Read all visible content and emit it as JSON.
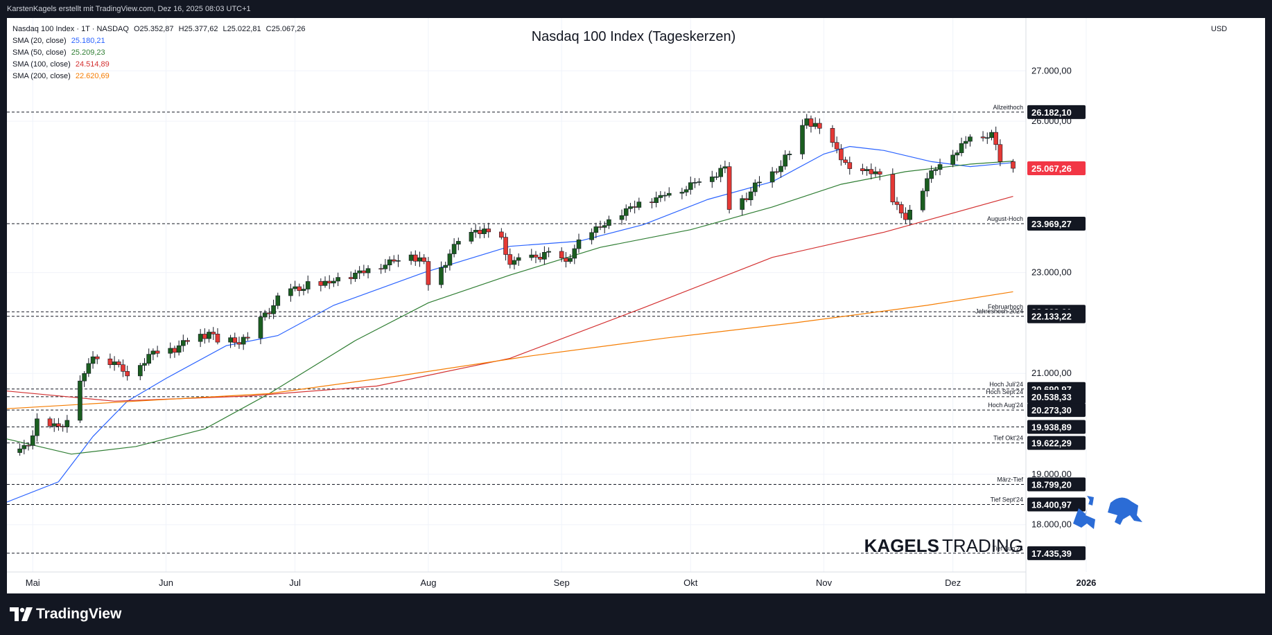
{
  "header": {
    "attribution": "KarstenKagels erstellt mit TradingView.com, Dez 16, 2025 08:03 UTC+1"
  },
  "legend": {
    "symbol_line": "Nasdaq 100 Index · 1T · NASDAQ",
    "ohlc": {
      "o": "O25.352,87",
      "h": "H25.377,62",
      "l": "L25.022,81",
      "c": "C25.067,26"
    },
    "sma": [
      {
        "label": "SMA (20, close)",
        "value": "25.180,21",
        "color": "#2962ff"
      },
      {
        "label": "SMA (50, close)",
        "value": "25.209,23",
        "color": "#2e7d32"
      },
      {
        "label": "SMA (100, close)",
        "value": "24.514,89",
        "color": "#d32f2f"
      },
      {
        "label": "SMA (200, close)",
        "value": "22.620,69",
        "color": "#f57c00"
      }
    ]
  },
  "currency": "USD",
  "footer": {
    "brand": "TradingView"
  },
  "watermark": {
    "text_bold": "KAGELS",
    "text_light": "TRADING",
    "color": "#2b6cd6"
  },
  "chart_data": {
    "type": "candlestick",
    "title": "Nasdaq 100 Index (Tageskerzen)",
    "y_range": [
      17200,
      27800
    ],
    "y_ticks": [
      {
        "v": 18000,
        "label": "18.000,00"
      },
      {
        "v": 19000,
        "label": "19.000,00"
      },
      {
        "v": 21000,
        "label": "21.000,00"
      },
      {
        "v": 23000,
        "label": "23.000,00"
      },
      {
        "v": 26000,
        "label": "26.000,00"
      },
      {
        "v": 27000,
        "label": "27.000,00"
      }
    ],
    "x_domain": [
      "2025-04-25",
      "2026-01-16"
    ],
    "x_labels": [
      {
        "date": "2025-05-01",
        "label": "Mai"
      },
      {
        "date": "2025-06-01",
        "label": "Jun"
      },
      {
        "date": "2025-07-01",
        "label": "Jul"
      },
      {
        "date": "2025-08-01",
        "label": "Aug"
      },
      {
        "date": "2025-09-01",
        "label": "Sep"
      },
      {
        "date": "2025-10-01",
        "label": "Okt"
      },
      {
        "date": "2025-11-01",
        "label": "Nov"
      },
      {
        "date": "2025-12-01",
        "label": "Dez"
      },
      {
        "date": "2026-01-01",
        "label": "2026"
      }
    ],
    "levels": [
      {
        "value": 26182.1,
        "label": "26.182,10",
        "name": "Allzeithoch",
        "dark": true
      },
      {
        "value": 25067.26,
        "label": "25.067,26",
        "name": "",
        "price": true
      },
      {
        "value": 23969.27,
        "label": "23.969,27",
        "name": "August-Hoch",
        "dark": true
      },
      {
        "value": 22222.61,
        "label": "22.222,61",
        "name": "Februarhoch",
        "dark": true
      },
      {
        "value": 22133.22,
        "label": "22.133,22",
        "name": "Jahreshoch 2024",
        "dark": true
      },
      {
        "value": 20690.97,
        "label": "20.690,97",
        "name": "Hoch Juli'24",
        "dark": true
      },
      {
        "value": 20538.33,
        "label": "20.538,33",
        "name": "Hoch Sept'24",
        "dark": true
      },
      {
        "value": 20273.3,
        "label": "20.273,30",
        "name": "Hoch Aug'24",
        "dark": true
      },
      {
        "value": 19938.89,
        "label": "19.938,89",
        "name": "",
        "dark": true
      },
      {
        "value": 19622.29,
        "label": "19.622,29",
        "name": "Tief Okt'24",
        "dark": true
      },
      {
        "value": 18799.2,
        "label": "18.799,20",
        "name": "März-Tief",
        "dark": true
      },
      {
        "value": 18400.97,
        "label": "18.400,97",
        "name": "Tief Sept'24",
        "dark": true
      },
      {
        "value": 17435.39,
        "label": "17.435,39",
        "name": "Tief Aug'24",
        "dark": true
      }
    ],
    "key_closes": [
      {
        "date": "2025-04-25",
        "close": 19430
      },
      {
        "date": "2025-04-30",
        "close": 19570
      },
      {
        "date": "2025-05-02",
        "close": 20100
      },
      {
        "date": "2025-05-07",
        "close": 19950
      },
      {
        "date": "2025-05-09",
        "close": 20070
      },
      {
        "date": "2025-05-12",
        "close": 20850
      },
      {
        "date": "2025-05-15",
        "close": 21330
      },
      {
        "date": "2025-05-20",
        "close": 21230
      },
      {
        "date": "2025-05-23",
        "close": 20950
      },
      {
        "date": "2025-05-28",
        "close": 21380
      },
      {
        "date": "2025-06-04",
        "close": 21550
      },
      {
        "date": "2025-06-11",
        "close": 21820
      },
      {
        "date": "2025-06-13",
        "close": 21620
      },
      {
        "date": "2025-06-20",
        "close": 21700
      },
      {
        "date": "2025-06-24",
        "close": 22200
      },
      {
        "date": "2025-06-30",
        "close": 22680
      },
      {
        "date": "2025-07-10",
        "close": 22830
      },
      {
        "date": "2025-07-18",
        "close": 23080
      },
      {
        "date": "2025-07-28",
        "close": 23350
      },
      {
        "date": "2025-07-31",
        "close": 23220
      },
      {
        "date": "2025-08-01",
        "close": 22760
      },
      {
        "date": "2025-08-08",
        "close": 23620
      },
      {
        "date": "2025-08-12",
        "close": 23840
      },
      {
        "date": "2025-08-18",
        "close": 23700
      },
      {
        "date": "2025-08-20",
        "close": 23160
      },
      {
        "date": "2025-08-29",
        "close": 23420
      },
      {
        "date": "2025-09-02",
        "close": 23220
      },
      {
        "date": "2025-09-05",
        "close": 23650
      },
      {
        "date": "2025-09-12",
        "close": 24050
      },
      {
        "date": "2025-09-19",
        "close": 24400
      },
      {
        "date": "2025-09-24",
        "close": 24530
      },
      {
        "date": "2025-10-03",
        "close": 24800
      },
      {
        "date": "2025-10-09",
        "close": 25100
      },
      {
        "date": "2025-10-10",
        "close": 24250
      },
      {
        "date": "2025-10-20",
        "close": 25000
      },
      {
        "date": "2025-10-24",
        "close": 25350
      },
      {
        "date": "2025-10-28",
        "close": 26050
      },
      {
        "date": "2025-10-31",
        "close": 25860
      },
      {
        "date": "2025-11-04",
        "close": 25450
      },
      {
        "date": "2025-11-07",
        "close": 25060
      },
      {
        "date": "2025-11-13",
        "close": 25000
      },
      {
        "date": "2025-11-20",
        "close": 24050
      },
      {
        "date": "2025-11-21",
        "close": 24240
      },
      {
        "date": "2025-11-26",
        "close": 25020
      },
      {
        "date": "2025-12-01",
        "close": 25330
      },
      {
        "date": "2025-12-05",
        "close": 25690
      },
      {
        "date": "2025-12-10",
        "close": 25780
      },
      {
        "date": "2025-12-12",
        "close": 25200
      },
      {
        "date": "2025-12-15",
        "close": 25067
      }
    ],
    "sma_series": [
      {
        "name": "SMA (20, close)",
        "color": "#2962ff",
        "points": [
          [
            "2025-04-25",
            18450
          ],
          [
            "2025-05-07",
            18850
          ],
          [
            "2025-05-15",
            19750
          ],
          [
            "2025-05-23",
            20450
          ],
          [
            "2025-06-01",
            20900
          ],
          [
            "2025-06-15",
            21550
          ],
          [
            "2025-06-27",
            21750
          ],
          [
            "2025-07-10",
            22350
          ],
          [
            "2025-07-31",
            23000
          ],
          [
            "2025-08-20",
            23520
          ],
          [
            "2025-09-05",
            23620
          ],
          [
            "2025-09-20",
            23950
          ],
          [
            "2025-10-05",
            24450
          ],
          [
            "2025-10-20",
            24800
          ],
          [
            "2025-11-01",
            25350
          ],
          [
            "2025-11-07",
            25500
          ],
          [
            "2025-11-15",
            25420
          ],
          [
            "2025-11-26",
            25200
          ],
          [
            "2025-12-05",
            25100
          ],
          [
            "2025-12-15",
            25180
          ]
        ]
      },
      {
        "name": "SMA (50, close)",
        "color": "#2e7d32",
        "points": [
          [
            "2025-04-25",
            19700
          ],
          [
            "2025-05-10",
            19400
          ],
          [
            "2025-05-25",
            19550
          ],
          [
            "2025-06-10",
            19900
          ],
          [
            "2025-06-25",
            20600
          ],
          [
            "2025-07-15",
            21650
          ],
          [
            "2025-08-01",
            22400
          ],
          [
            "2025-08-20",
            22950
          ],
          [
            "2025-09-10",
            23500
          ],
          [
            "2025-10-01",
            23850
          ],
          [
            "2025-10-20",
            24300
          ],
          [
            "2025-11-05",
            24750
          ],
          [
            "2025-11-20",
            25000
          ],
          [
            "2025-12-05",
            25150
          ],
          [
            "2025-12-15",
            25210
          ]
        ]
      },
      {
        "name": "SMA (100, close)",
        "color": "#d32f2f",
        "points": [
          [
            "2025-04-25",
            20650
          ],
          [
            "2025-05-20",
            20450
          ],
          [
            "2025-06-20",
            20550
          ],
          [
            "2025-07-20",
            20750
          ],
          [
            "2025-08-20",
            21300
          ],
          [
            "2025-09-20",
            22300
          ],
          [
            "2025-10-20",
            23300
          ],
          [
            "2025-11-15",
            23800
          ],
          [
            "2025-12-15",
            24510
          ]
        ]
      },
      {
        "name": "SMA (200, close)",
        "color": "#f57c00",
        "points": [
          [
            "2025-04-25",
            20300
          ],
          [
            "2025-05-25",
            20450
          ],
          [
            "2025-06-25",
            20600
          ],
          [
            "2025-07-25",
            20950
          ],
          [
            "2025-08-25",
            21350
          ],
          [
            "2025-09-25",
            21700
          ],
          [
            "2025-10-25",
            22000
          ],
          [
            "2025-11-25",
            22350
          ],
          [
            "2025-12-15",
            22620
          ]
        ]
      }
    ]
  }
}
